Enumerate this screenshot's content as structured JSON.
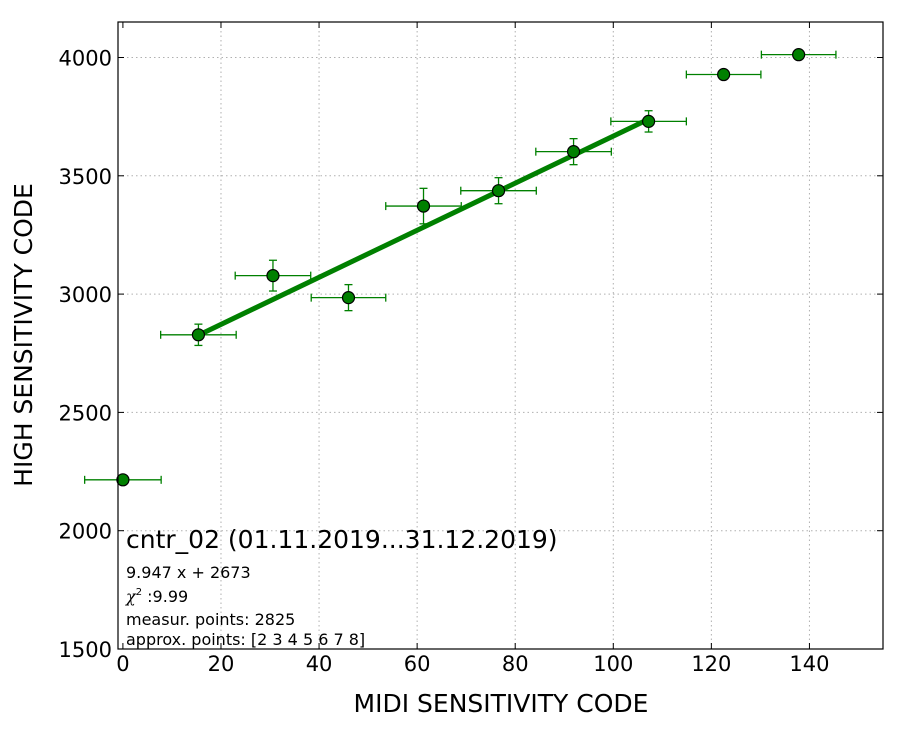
{
  "chart_data": {
    "type": "scatter",
    "title": "",
    "xlabel": "MIDI SENSITIVITY CODE",
    "ylabel": "HIGH SENSITIVITY CODE",
    "xlim": [
      -1,
      155
    ],
    "ylim": [
      1500,
      4150
    ],
    "xticks": [
      0,
      20,
      40,
      60,
      80,
      100,
      120,
      140
    ],
    "yticks": [
      1500,
      2000,
      2500,
      3000,
      3500,
      4000
    ],
    "grid": true,
    "points": [
      {
        "x": 0.0,
        "y": 2215,
        "xerr": 7.8,
        "yerr": 0
      },
      {
        "x": 15.4,
        "y": 2828,
        "xerr": 7.7,
        "yerr": 45
      },
      {
        "x": 30.6,
        "y": 3078,
        "xerr": 7.7,
        "yerr": 65
      },
      {
        "x": 46.0,
        "y": 2985,
        "xerr": 7.6,
        "yerr": 55
      },
      {
        "x": 61.3,
        "y": 3372,
        "xerr": 7.7,
        "yerr": 75
      },
      {
        "x": 76.6,
        "y": 3437,
        "xerr": 7.7,
        "yerr": 55
      },
      {
        "x": 91.9,
        "y": 3602,
        "xerr": 7.7,
        "yerr": 55
      },
      {
        "x": 107.2,
        "y": 3730,
        "xerr": 7.7,
        "yerr": 45
      },
      {
        "x": 122.5,
        "y": 3928,
        "xerr": 7.6,
        "yerr": 15
      },
      {
        "x": 137.8,
        "y": 4012,
        "xerr": 7.6,
        "yerr": 10
      }
    ],
    "fit": {
      "slope": 9.947,
      "intercept": 2673,
      "x_range": [
        15.4,
        107.2
      ]
    },
    "colors": {
      "marker": "#008000",
      "fit_line": "#008000",
      "error_bar": "#008000",
      "marker_edge": "#000000"
    }
  },
  "annotations": {
    "title": "cntr_02 (01.11.2019...31.12.2019)",
    "equation": "9.947 x + 2673",
    "chi_symbol": "χ",
    "chi_exp": "2",
    "chi_value": " :9.99",
    "measur_points": "measur. points: 2825",
    "approx_points": "approx. points: [2 3 4 5 6 7 8]"
  }
}
